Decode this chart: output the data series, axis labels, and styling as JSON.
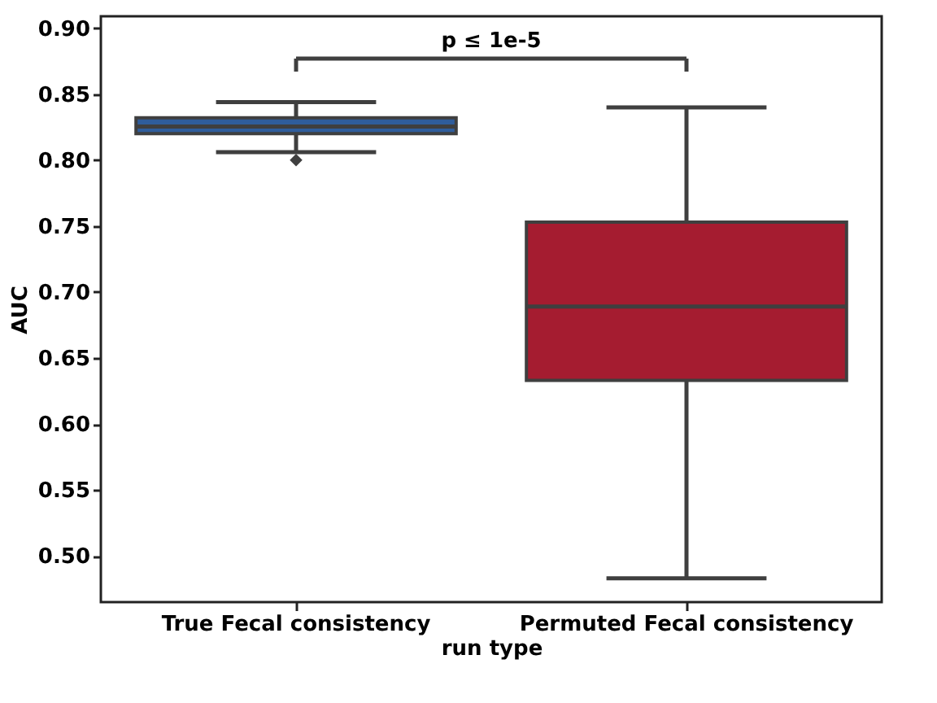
{
  "chart_data": {
    "type": "box",
    "xlabel": "run type",
    "ylabel": "AUC",
    "categories": [
      "True Fecal consistency",
      "Permuted Fecal consistency"
    ],
    "colors": [
      "#2f5d9c",
      "#a51c30"
    ],
    "boxes": [
      {
        "low": 0.806,
        "q1": 0.82,
        "median": 0.8255,
        "q3": 0.832,
        "high": 0.844,
        "outliers": [
          0.8
        ]
      },
      {
        "low": 0.483,
        "q1": 0.633,
        "median": 0.689,
        "q3": 0.753,
        "high": 0.84
      }
    ],
    "ylim": [
      0.465,
      0.909
    ],
    "yticks": [
      {
        "value": 0.5,
        "label": "0.50"
      },
      0.55,
      {
        "value": 0.6,
        "label": "0.60"
      },
      0.65,
      {
        "value": 0.7,
        "label": "0.70"
      },
      0.75,
      {
        "value": 0.8,
        "label": "0.80"
      },
      0.85,
      {
        "value": 0.9,
        "label": "0.90"
      }
    ],
    "annotations": [
      "p ≤ 1e-5"
    ]
  }
}
